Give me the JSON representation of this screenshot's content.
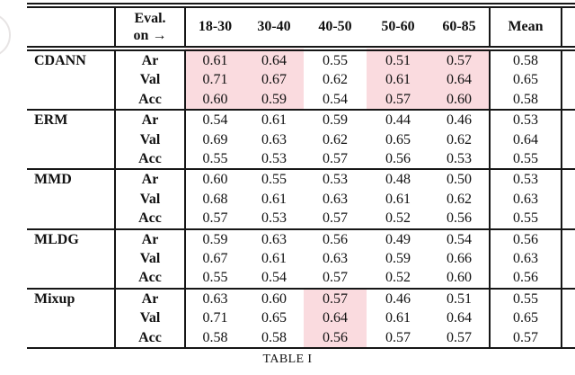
{
  "colors": {
    "highlight_pink": "#fadbdf",
    "rule": "#161616",
    "background": "#ffffff"
  },
  "caption": "TABLE I",
  "table": {
    "corner_label": "",
    "eval_header": {
      "line1": "Eval.",
      "line2": "on →"
    },
    "age_columns": [
      "18-30",
      "30-40",
      "40-50",
      "50-60",
      "60-85"
    ],
    "mean_header": "Mean",
    "row_labels": [
      "Ar",
      "Val",
      "Acc"
    ],
    "groups": [
      {
        "method": "CDANN",
        "highlight_columns": [
          0,
          1,
          3,
          4
        ],
        "rows": [
          {
            "label": "Ar",
            "values": [
              "0.61",
              "0.64",
              "0.55",
              "0.51",
              "0.57"
            ],
            "mean": "0.58"
          },
          {
            "label": "Val",
            "values": [
              "0.71",
              "0.67",
              "0.62",
              "0.61",
              "0.64"
            ],
            "mean": "0.65"
          },
          {
            "label": "Acc",
            "values": [
              "0.60",
              "0.59",
              "0.54",
              "0.57",
              "0.60"
            ],
            "mean": "0.58"
          }
        ]
      },
      {
        "method": "ERM",
        "highlight_columns": [],
        "rows": [
          {
            "label": "Ar",
            "values": [
              "0.54",
              "0.61",
              "0.59",
              "0.44",
              "0.46"
            ],
            "mean": "0.53"
          },
          {
            "label": "Val",
            "values": [
              "0.69",
              "0.63",
              "0.62",
              "0.65",
              "0.62"
            ],
            "mean": "0.64"
          },
          {
            "label": "Acc",
            "values": [
              "0.55",
              "0.53",
              "0.57",
              "0.56",
              "0.53"
            ],
            "mean": "0.55"
          }
        ]
      },
      {
        "method": "MMD",
        "highlight_columns": [],
        "rows": [
          {
            "label": "Ar",
            "values": [
              "0.60",
              "0.55",
              "0.53",
              "0.48",
              "0.50"
            ],
            "mean": "0.53"
          },
          {
            "label": "Val",
            "values": [
              "0.68",
              "0.61",
              "0.63",
              "0.61",
              "0.62"
            ],
            "mean": "0.63"
          },
          {
            "label": "Acc",
            "values": [
              "0.57",
              "0.53",
              "0.57",
              "0.52",
              "0.56"
            ],
            "mean": "0.55"
          }
        ]
      },
      {
        "method": "MLDG",
        "highlight_columns": [],
        "rows": [
          {
            "label": "Ar",
            "values": [
              "0.59",
              "0.63",
              "0.56",
              "0.49",
              "0.54"
            ],
            "mean": "0.56"
          },
          {
            "label": "Val",
            "values": [
              "0.67",
              "0.61",
              "0.63",
              "0.59",
              "0.66"
            ],
            "mean": "0.63"
          },
          {
            "label": "Acc",
            "values": [
              "0.55",
              "0.54",
              "0.57",
              "0.52",
              "0.60"
            ],
            "mean": "0.56"
          }
        ]
      },
      {
        "method": "Mixup",
        "highlight_columns": [
          2
        ],
        "rows": [
          {
            "label": "Ar",
            "values": [
              "0.63",
              "0.60",
              "0.57",
              "0.46",
              "0.51"
            ],
            "mean": "0.55"
          },
          {
            "label": "Val",
            "values": [
              "0.71",
              "0.65",
              "0.64",
              "0.61",
              "0.64"
            ],
            "mean": "0.65"
          },
          {
            "label": "Acc",
            "values": [
              "0.58",
              "0.58",
              "0.56",
              "0.57",
              "0.57"
            ],
            "mean": "0.57"
          }
        ]
      }
    ]
  }
}
